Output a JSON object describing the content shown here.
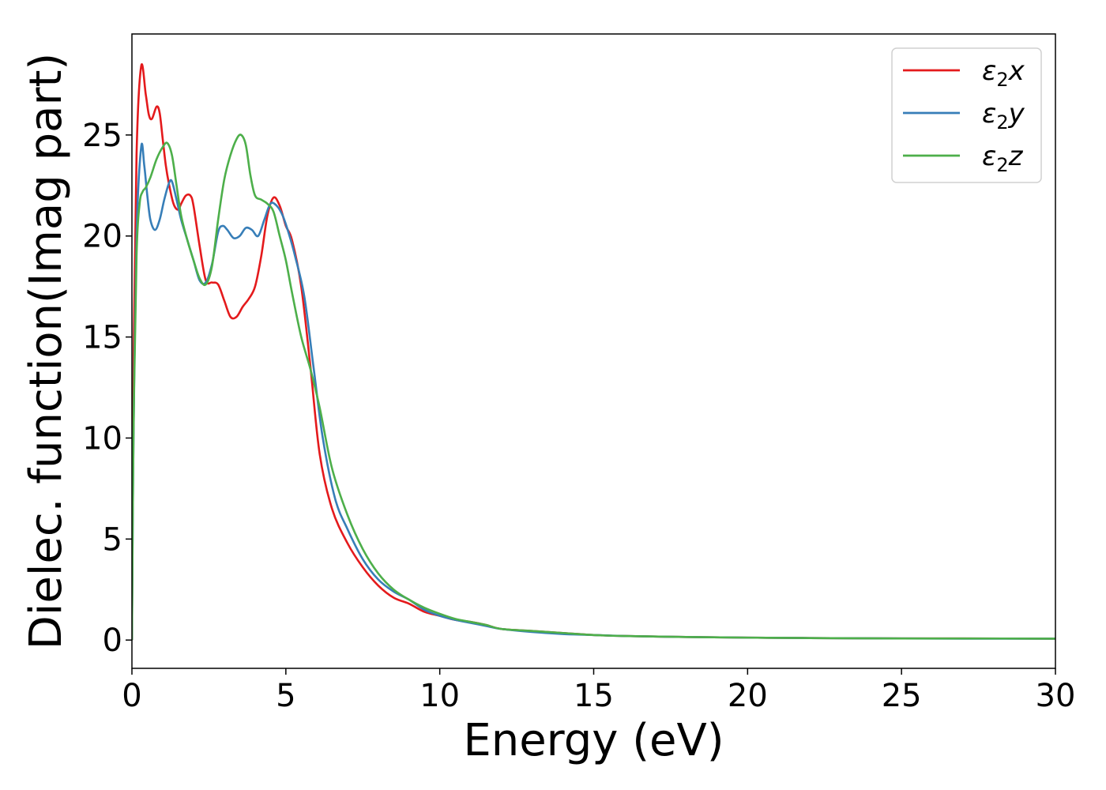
{
  "chart_data": {
    "type": "line",
    "xlabel": "Energy (eV)",
    "ylabel": "Dielec. function(Imag part)",
    "xlim": [
      0,
      30
    ],
    "ylim": [
      -1.4,
      30
    ],
    "xticks": [
      0,
      5,
      10,
      15,
      20,
      25,
      30
    ],
    "yticks": [
      0,
      5,
      10,
      15,
      20,
      25
    ],
    "grid": false,
    "legend_position": "top-right",
    "series": [
      {
        "name": "ε2x",
        "label_main": "ε",
        "label_sub": "2",
        "label_tail": "x",
        "color": "#e41a1c",
        "x": [
          0,
          0.05,
          0.15,
          0.3,
          0.45,
          0.55,
          0.65,
          0.8,
          0.9,
          1.0,
          1.1,
          1.2,
          1.35,
          1.5,
          1.6,
          1.75,
          1.9,
          2.0,
          2.2,
          2.4,
          2.6,
          2.8,
          3.0,
          3.2,
          3.4,
          3.6,
          3.8,
          4.0,
          4.2,
          4.4,
          4.6,
          4.8,
          5.0,
          5.2,
          5.5,
          5.8,
          6.1,
          6.5,
          7.0,
          7.5,
          8.0,
          8.5,
          9.0,
          9.5,
          10.0,
          10.5,
          11.0,
          11.5,
          12.0,
          13.0,
          14.0,
          15.0,
          16.0,
          18.0,
          20.0,
          22.0,
          25.0,
          27.0,
          30.0
        ],
        "y": [
          0,
          13,
          24,
          28.4,
          27.0,
          26.0,
          25.8,
          26.4,
          26.1,
          24.8,
          23.5,
          22.6,
          21.6,
          21.3,
          21.6,
          22.0,
          22.0,
          21.5,
          19.5,
          17.8,
          17.7,
          17.6,
          16.8,
          16.0,
          16.0,
          16.5,
          16.9,
          17.5,
          19.0,
          21.0,
          21.9,
          21.5,
          20.5,
          19.8,
          17.5,
          13.5,
          9.2,
          6.5,
          4.8,
          3.6,
          2.7,
          2.1,
          1.8,
          1.4,
          1.2,
          1.0,
          0.9,
          0.75,
          0.55,
          0.45,
          0.35,
          0.25,
          0.2,
          0.15,
          0.12,
          0.1,
          0.08,
          0.08,
          0.07
        ]
      },
      {
        "name": "ε2y",
        "label_main": "ε",
        "label_sub": "2",
        "label_tail": "y",
        "color": "#377eb8",
        "x": [
          0,
          0.05,
          0.15,
          0.3,
          0.4,
          0.5,
          0.6,
          0.75,
          0.9,
          1.05,
          1.2,
          1.3,
          1.45,
          1.6,
          1.8,
          2.0,
          2.2,
          2.4,
          2.6,
          2.8,
          2.95,
          3.1,
          3.3,
          3.5,
          3.7,
          3.9,
          4.1,
          4.3,
          4.5,
          4.7,
          4.9,
          5.1,
          5.3,
          5.6,
          5.9,
          6.2,
          6.6,
          7.0,
          7.5,
          8.0,
          8.5,
          9.0,
          9.5,
          10.0,
          10.5,
          11.0,
          11.5,
          12.0,
          13.0,
          14.0,
          15.0,
          16.0,
          18.0,
          20.0,
          22.0,
          25.0,
          27.0,
          30.0
        ],
        "y": [
          0,
          10,
          20,
          24.4,
          23.5,
          22.0,
          20.8,
          20.3,
          20.8,
          21.8,
          22.6,
          22.7,
          21.8,
          20.8,
          19.8,
          18.8,
          17.8,
          17.7,
          18.6,
          20.2,
          20.5,
          20.3,
          19.9,
          20.0,
          20.4,
          20.3,
          20.0,
          20.8,
          21.6,
          21.5,
          21.0,
          20.1,
          19.0,
          17.0,
          13.5,
          10.0,
          7.0,
          5.5,
          4.0,
          3.0,
          2.4,
          2.0,
          1.5,
          1.2,
          1.0,
          0.85,
          0.7,
          0.55,
          0.4,
          0.3,
          0.25,
          0.2,
          0.15,
          0.12,
          0.1,
          0.08,
          0.07,
          0.07
        ]
      },
      {
        "name": "ε2z",
        "label_main": "ε",
        "label_sub": "2",
        "label_tail": "z",
        "color": "#4daf4a",
        "x": [
          0,
          0.05,
          0.15,
          0.25,
          0.35,
          0.45,
          0.6,
          0.8,
          1.0,
          1.15,
          1.3,
          1.45,
          1.6,
          1.8,
          2.0,
          2.2,
          2.4,
          2.6,
          2.8,
          3.0,
          3.2,
          3.4,
          3.55,
          3.7,
          3.85,
          4.0,
          4.2,
          4.4,
          4.6,
          4.8,
          5.0,
          5.2,
          5.5,
          5.8,
          6.1,
          6.5,
          7.0,
          7.5,
          8.0,
          8.5,
          9.0,
          9.5,
          10.0,
          10.5,
          11.0,
          11.5,
          12.0,
          13.0,
          14.0,
          15.0,
          16.0,
          18.0,
          20.0,
          22.0,
          25.0,
          27.0,
          30.0
        ],
        "y": [
          0,
          10,
          19,
          21.6,
          22.2,
          22.4,
          22.9,
          23.8,
          24.4,
          24.6,
          24.0,
          22.5,
          21.0,
          19.8,
          18.8,
          17.9,
          17.6,
          18.5,
          20.8,
          22.8,
          24.0,
          24.8,
          25.0,
          24.5,
          23.0,
          22.0,
          21.8,
          21.6,
          21.2,
          20.0,
          18.8,
          17.2,
          15.0,
          13.4,
          11.5,
          8.5,
          6.2,
          4.5,
          3.3,
          2.5,
          2.0,
          1.6,
          1.3,
          1.05,
          0.9,
          0.75,
          0.55,
          0.45,
          0.35,
          0.25,
          0.2,
          0.15,
          0.12,
          0.1,
          0.08,
          0.08,
          0.07
        ]
      }
    ]
  }
}
